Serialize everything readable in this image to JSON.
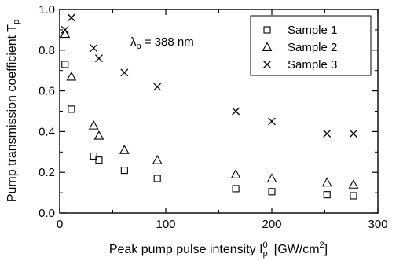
{
  "chart_data": {
    "type": "scatter",
    "xlabel": "Peak pump pulse intensity I",
    "xlabel_sup": "0",
    "xlabel_sub": "p",
    "xlabel_unit": "[GW/cm",
    "xlabel_unit_sup": "2",
    "xlabel_unit_end": "]",
    "ylabel": "Pump transmission coefficient T",
    "ylabel_sub": "p",
    "annotation": {
      "symbol": "λ",
      "sub": "p",
      "text": " = 388 nm"
    },
    "xlim": [
      0,
      300
    ],
    "ylim": [
      0.0,
      1.0
    ],
    "x_ticks": [
      {
        "value": 0,
        "label": "0"
      },
      {
        "value": 100,
        "label": "100"
      },
      {
        "value": 200,
        "label": "200"
      },
      {
        "value": 300,
        "label": "300"
      }
    ],
    "y_ticks": [
      {
        "value": 0.0,
        "label": "0.0"
      },
      {
        "value": 0.2,
        "label": "0.2"
      },
      {
        "value": 0.4,
        "label": "0.4"
      },
      {
        "value": 0.6,
        "label": "0.6"
      },
      {
        "value": 0.8,
        "label": "0.8"
      },
      {
        "value": 1.0,
        "label": "1.0"
      }
    ],
    "x_minor_step": 50,
    "y_minor_step": 0.1,
    "grid": false,
    "legend_position": "top-right",
    "series": [
      {
        "name": "Sample 1",
        "marker": "square",
        "x": [
          5,
          11,
          32,
          37,
          61,
          92,
          166,
          200,
          252,
          277
        ],
        "y": [
          0.73,
          0.51,
          0.28,
          0.26,
          0.21,
          0.17,
          0.12,
          0.105,
          0.09,
          0.085
        ]
      },
      {
        "name": "Sample 2",
        "marker": "triangle",
        "x": [
          5,
          11,
          32,
          37,
          61,
          92,
          166,
          200,
          252,
          277
        ],
        "y": [
          0.88,
          0.67,
          0.43,
          0.38,
          0.31,
          0.26,
          0.19,
          0.17,
          0.15,
          0.14
        ]
      },
      {
        "name": "Sample 3",
        "marker": "cross",
        "x": [
          5,
          11,
          32,
          37,
          61,
          92,
          166,
          200,
          252,
          277
        ],
        "y": [
          0.9,
          0.96,
          0.81,
          0.76,
          0.69,
          0.62,
          0.5,
          0.45,
          0.39,
          0.39
        ]
      }
    ]
  }
}
